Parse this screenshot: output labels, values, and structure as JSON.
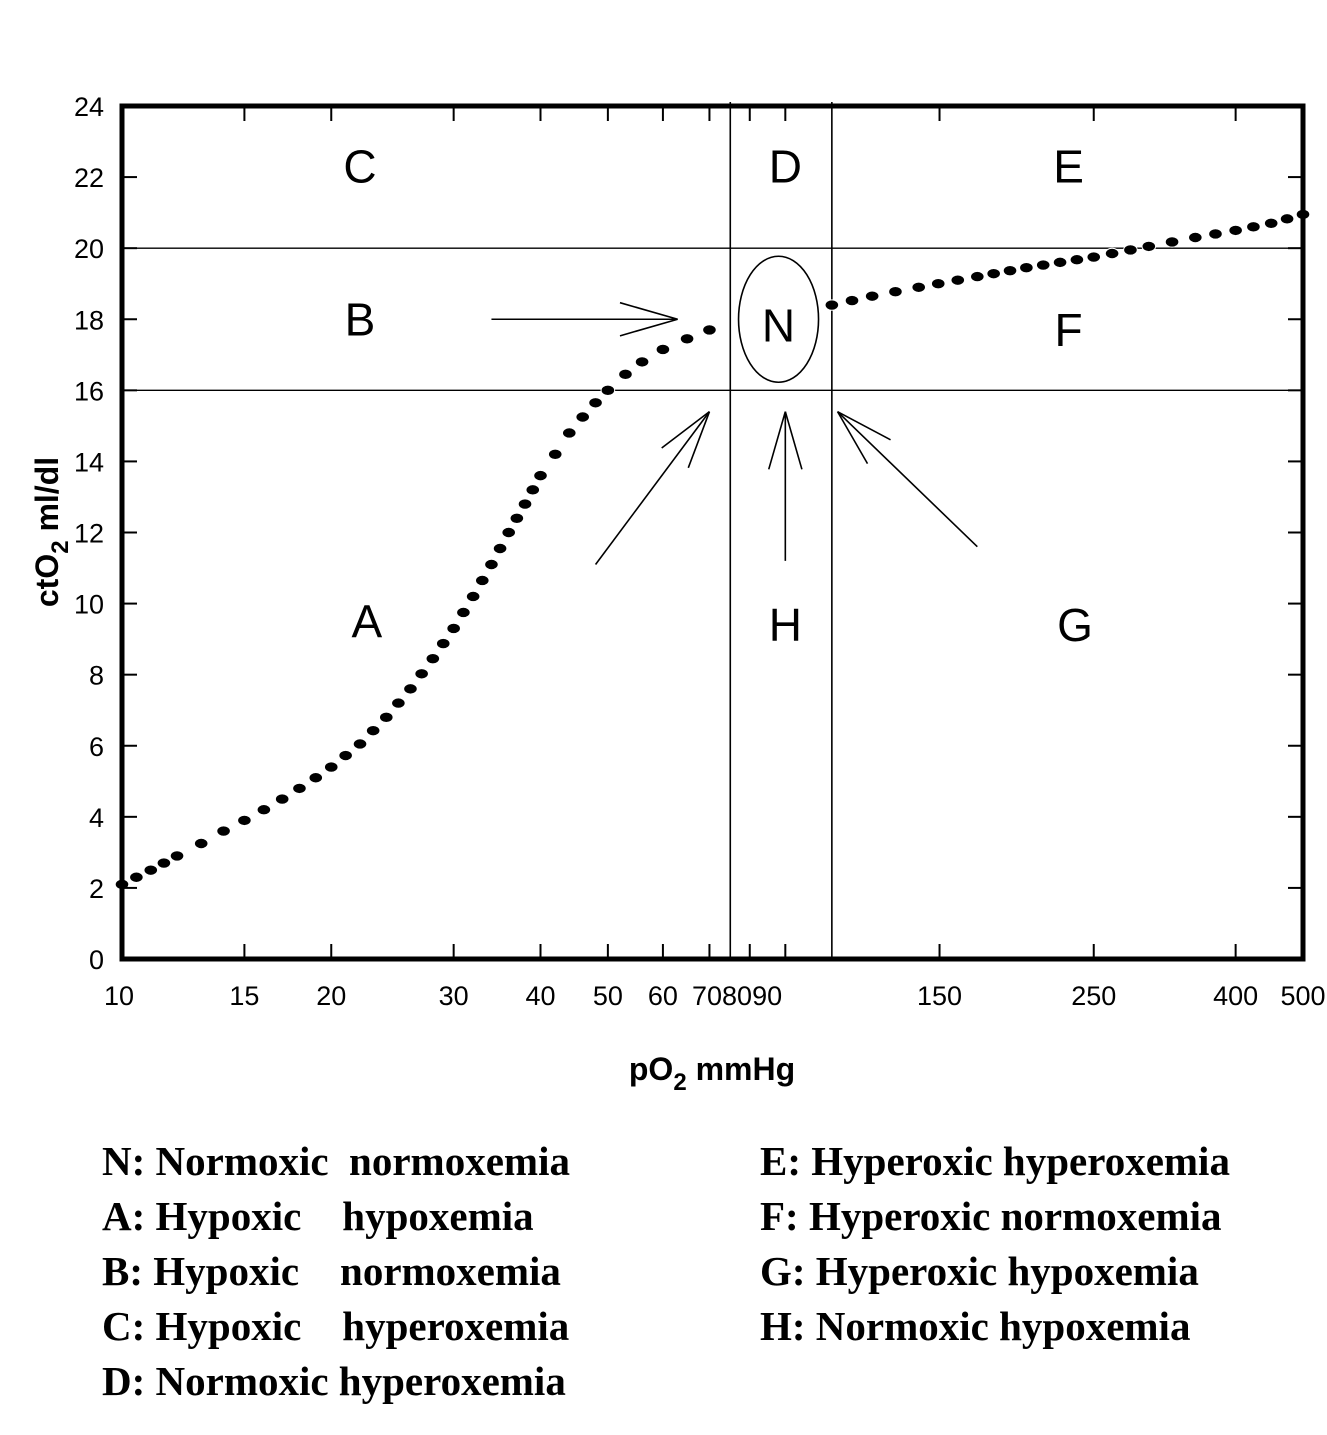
{
  "chart_data": {
    "type": "scatter",
    "x_scale": "log",
    "xlim": [
      10,
      500
    ],
    "ylim": [
      0,
      24
    ],
    "x_tick_values": [
      10,
      15,
      20,
      30,
      40,
      50,
      60,
      70,
      80,
      90,
      150,
      250,
      400,
      500
    ],
    "x_tick_labels": [
      "10",
      "15",
      "20",
      "30",
      "40",
      "50",
      "60",
      "70",
      "80",
      "90",
      "150",
      "250",
      "400",
      "500"
    ],
    "y_tick_values": [
      0,
      2,
      4,
      6,
      8,
      10,
      12,
      14,
      16,
      18,
      20,
      22,
      24
    ],
    "y_tick_labels": [
      "0",
      "2",
      "4",
      "6",
      "8",
      "10",
      "12",
      "14",
      "16",
      "18",
      "20",
      "22",
      "24"
    ],
    "xlabel": {
      "main": "pO",
      "sub": "2",
      "unit": " mmHg"
    },
    "ylabel": {
      "main": "ctO",
      "sub": "2",
      "unit": " ml/dl"
    },
    "grid": false,
    "reference_lines": {
      "vertical_x": [
        75,
        105
      ],
      "horizontal_y": [
        16,
        20
      ]
    },
    "normal_zone": {
      "x_center": 88,
      "y_center": 18,
      "label": "N"
    },
    "regions": [
      {
        "id": "C",
        "label": "C",
        "x": 22,
        "y": 22.3
      },
      {
        "id": "D",
        "label": "D",
        "x": 90,
        "y": 22.3
      },
      {
        "id": "E",
        "label": "E",
        "x": 230,
        "y": 22.3
      },
      {
        "id": "B",
        "label": "B",
        "x": 22,
        "y": 18
      },
      {
        "id": "F",
        "label": "F",
        "x": 230,
        "y": 17.7
      },
      {
        "id": "A",
        "label": "A",
        "x": 22.5,
        "y": 9.5
      },
      {
        "id": "H",
        "label": "H",
        "x": 90,
        "y": 9.4
      },
      {
        "id": "G",
        "label": "G",
        "x": 235,
        "y": 9.4
      }
    ],
    "arrows": [
      {
        "from": [
          34,
          18.0
        ],
        "to": [
          63,
          18.0
        ]
      },
      {
        "from": [
          48,
          11.1
        ],
        "to": [
          70,
          15.4
        ]
      },
      {
        "from": [
          90,
          11.2
        ],
        "to": [
          90,
          15.4
        ]
      },
      {
        "from": [
          170,
          11.6
        ],
        "to": [
          107,
          15.4
        ]
      }
    ],
    "series": [
      {
        "points": [
          [
            10,
            2.1
          ],
          [
            11,
            2.5
          ],
          [
            12,
            2.9
          ],
          [
            13,
            3.25
          ],
          [
            14,
            3.6
          ],
          [
            15,
            3.9
          ],
          [
            16,
            4.2
          ],
          [
            17,
            4.5
          ],
          [
            18,
            4.8
          ],
          [
            19,
            5.1
          ],
          [
            20,
            5.4
          ],
          [
            22,
            6.05
          ],
          [
            24,
            6.8
          ],
          [
            26,
            7.6
          ],
          [
            28,
            8.45
          ],
          [
            30,
            9.3
          ],
          [
            32,
            10.2
          ],
          [
            34,
            11.1
          ],
          [
            36,
            12.0
          ],
          [
            38,
            12.8
          ],
          [
            40,
            13.6
          ],
          [
            42,
            14.2
          ],
          [
            44,
            14.8
          ],
          [
            46,
            15.25
          ],
          [
            48,
            15.65
          ],
          [
            50,
            16.0
          ],
          [
            53,
            16.45
          ],
          [
            56,
            16.8
          ],
          [
            60,
            17.15
          ],
          [
            65,
            17.45
          ],
          [
            70,
            17.7
          ],
          [
            75,
            17.85
          ],
          [
            105,
            18.4
          ],
          [
            120,
            18.65
          ],
          [
            140,
            18.9
          ],
          [
            170,
            19.2
          ],
          [
            200,
            19.45
          ],
          [
            250,
            19.75
          ],
          [
            300,
            20.05
          ],
          [
            350,
            20.3
          ],
          [
            400,
            20.5
          ],
          [
            450,
            20.7
          ],
          [
            500,
            20.95
          ]
        ]
      }
    ]
  },
  "legend": {
    "left": [
      "N: Normoxic  normoxemia",
      "A: Hypoxic    hypoxemia",
      "B: Hypoxic    normoxemia",
      "C: Hypoxic    hyperoxemia",
      "D: Normoxic hyperoxemia"
    ],
    "right": [
      "E: Hyperoxic hyperoxemia",
      "F: Hyperoxic normoxemia",
      "G: Hyperoxic hypoxemia",
      "H: Normoxic hypoxemia"
    ]
  }
}
